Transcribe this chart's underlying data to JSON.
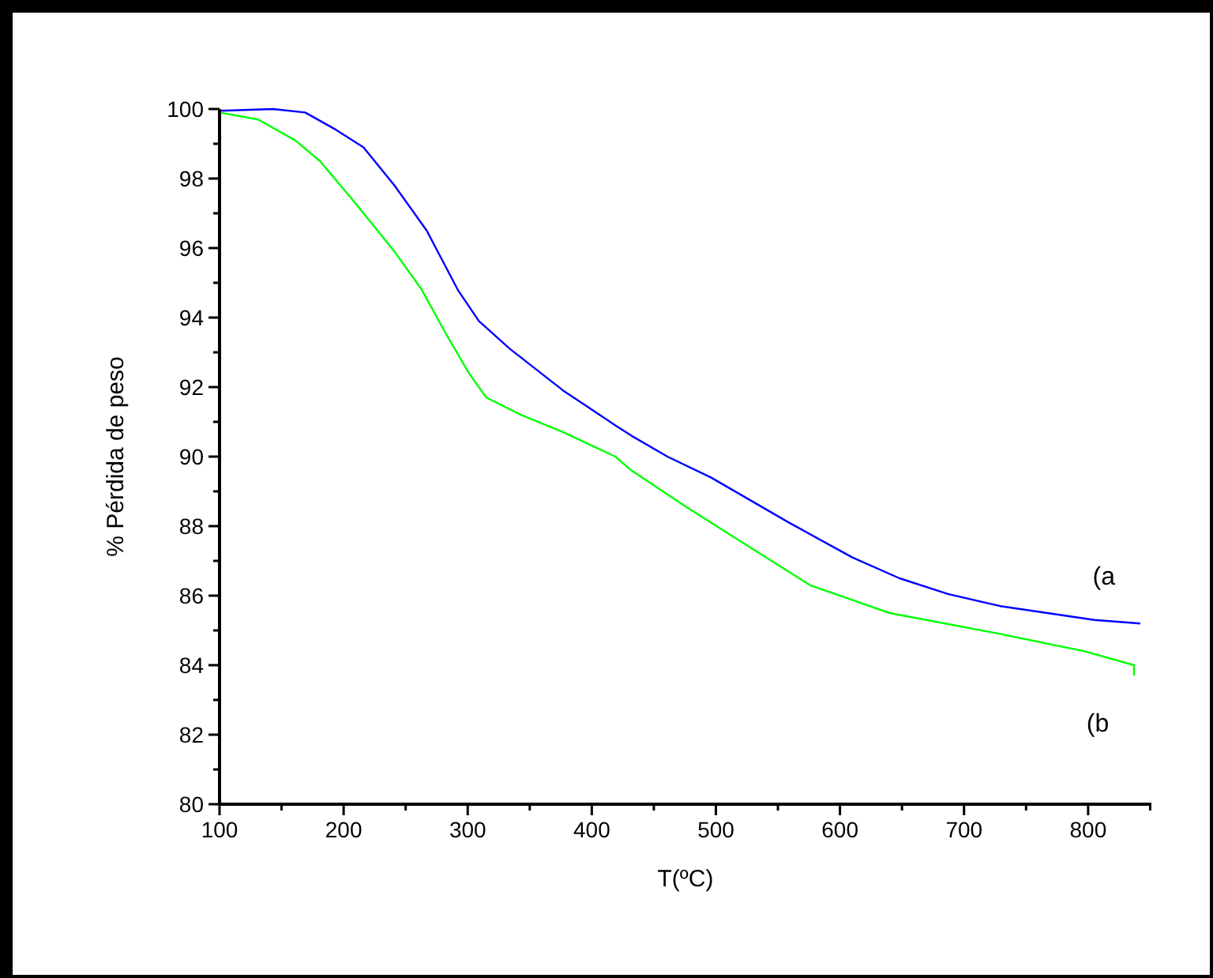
{
  "chart_data": {
    "type": "line",
    "xlabel": "T(ºC)",
    "ylabel": "% Pérdida de peso",
    "xlim": [
      100,
      851
    ],
    "ylim": [
      80,
      100
    ],
    "xticks": [
      100,
      {
        "value": 150,
        "label": null
      },
      200,
      {
        "value": 250,
        "label": null
      },
      300,
      {
        "value": 350,
        "label": null
      },
      400,
      {
        "value": 450,
        "label": null
      },
      500,
      {
        "value": 550,
        "label": null
      },
      600,
      {
        "value": 650,
        "label": null
      },
      700,
      {
        "value": 750,
        "label": null
      },
      800,
      {
        "value": 850,
        "label": null
      }
    ],
    "yticks": [
      80,
      {
        "value": 81,
        "label": null
      },
      82,
      {
        "value": 83,
        "label": null
      },
      84,
      {
        "value": 85,
        "label": null
      },
      86,
      {
        "value": 87,
        "label": null
      },
      88,
      {
        "value": 89,
        "label": null
      },
      90,
      {
        "value": 91,
        "label": null
      },
      92,
      {
        "value": 93,
        "label": null
      },
      94,
      {
        "value": 95,
        "label": null
      },
      96,
      {
        "value": 97,
        "label": null
      },
      98,
      {
        "value": 99,
        "label": null
      },
      100
    ],
    "grid": false,
    "legend": false,
    "line_style": "solid",
    "marker": "none",
    "series": [
      {
        "name": "(a",
        "color": "#0000ff",
        "x": [
          100,
          143,
          169,
          194,
          216,
          241,
          267,
          292,
          309,
          334,
          377,
          419,
          432,
          461,
          496,
          559,
          610,
          648,
          687,
          729,
          805,
          842
        ],
        "values": [
          99.95,
          100,
          99.9,
          99.4,
          98.9,
          97.8,
          96.5,
          94.8,
          93.9,
          93.1,
          91.9,
          90.9,
          90.6,
          90,
          89.4,
          88.1,
          87.1,
          86.5,
          86.05,
          85.7,
          85.3,
          85.2
        ]
      },
      {
        "name": "(b",
        "color": "#00ff00",
        "x": [
          100,
          131,
          161,
          181,
          207,
          241,
          263,
          283,
          301,
          315,
          343,
          377,
          419,
          432,
          474,
          496,
          576,
          640,
          729,
          797,
          837,
          837
        ],
        "values": [
          99.9,
          99.7,
          99.1,
          98.5,
          97.4,
          95.9,
          94.8,
          93.5,
          92.4,
          91.7,
          91.2,
          90.7,
          90,
          89.6,
          88.6,
          88.1,
          86.3,
          85.5,
          84.9,
          84.4,
          84,
          83.7
        ]
      }
    ]
  }
}
